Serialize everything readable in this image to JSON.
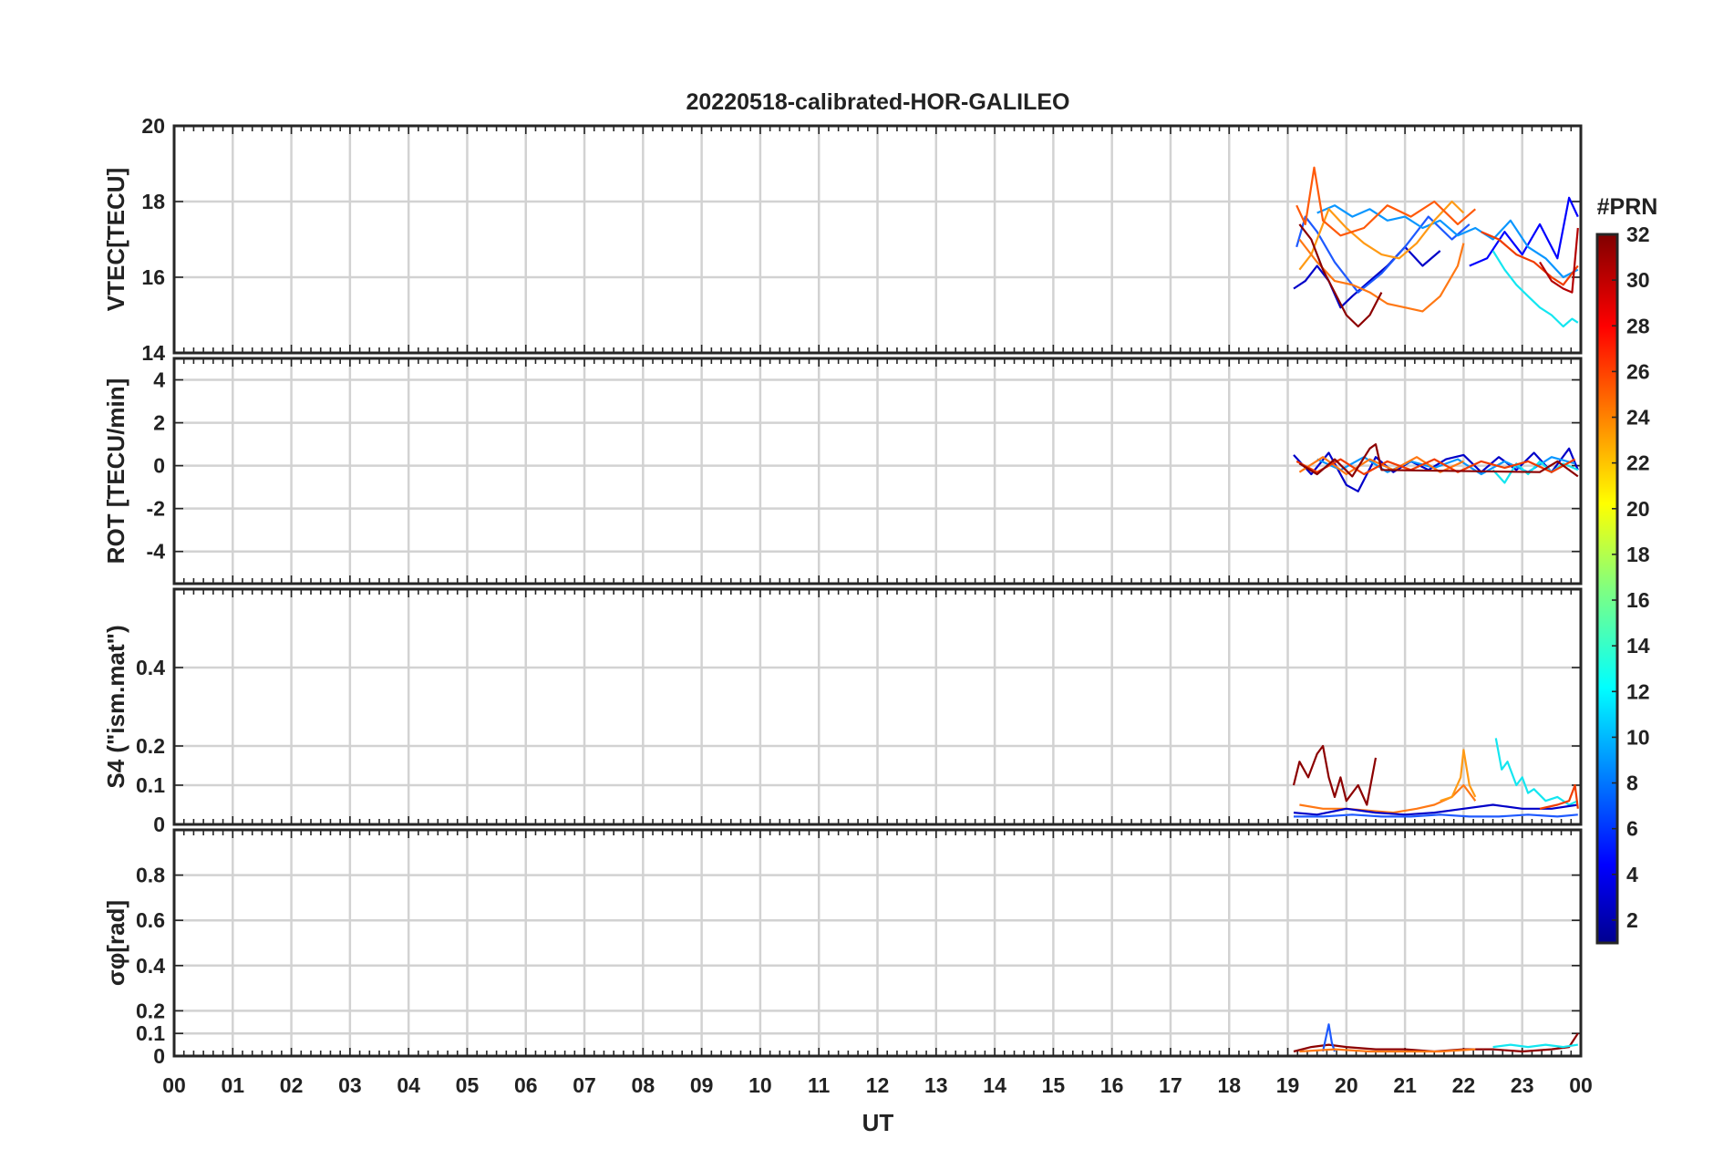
{
  "chart_data": {
    "type": "line",
    "title": "20220518-calibrated-HOR-GALILEO",
    "xlabel": "UT",
    "x_tick_labels": [
      "00",
      "01",
      "02",
      "03",
      "04",
      "05",
      "06",
      "07",
      "08",
      "09",
      "10",
      "11",
      "12",
      "13",
      "14",
      "15",
      "16",
      "17",
      "18",
      "19",
      "20",
      "21",
      "22",
      "23",
      "00"
    ],
    "xlim_hours": [
      0,
      24
    ],
    "grid": true,
    "colorbar": {
      "label": "#PRN",
      "range": [
        1,
        32
      ],
      "tick_labels": [
        "2",
        "4",
        "6",
        "8",
        "10",
        "12",
        "14",
        "16",
        "18",
        "20",
        "22",
        "24",
        "26",
        "28",
        "30",
        "32"
      ],
      "colormap": "jet"
    },
    "panels": [
      {
        "name": "vtec",
        "ylabel": "VTEC[TECU]",
        "ylim": [
          14,
          20
        ],
        "y_ticks": [
          14,
          16,
          18,
          20
        ],
        "y_tick_labels": [
          "14",
          "16",
          "18",
          "20"
        ],
        "series": [
          {
            "prn": 2,
            "color": "#0000c8",
            "x": [
              19.1,
              19.3,
              19.5,
              19.7,
              19.9,
              20.1,
              20.4,
              20.7,
              21.0,
              21.3,
              21.6
            ],
            "y": [
              15.7,
              15.9,
              16.3,
              15.9,
              15.2,
              15.5,
              15.9,
              16.3,
              16.8,
              16.3,
              16.7
            ]
          },
          {
            "prn": 3,
            "color": "#0000ff",
            "x": [
              22.1,
              22.4,
              22.7,
              23.0,
              23.3,
              23.6,
              23.8,
              23.95
            ],
            "y": [
              16.3,
              16.5,
              17.2,
              16.6,
              17.4,
              16.5,
              18.1,
              17.6
            ]
          },
          {
            "prn": 5,
            "color": "#1e5aff",
            "x": [
              19.15,
              19.3,
              19.5,
              19.8,
              20.2,
              20.6,
              21.0,
              21.4,
              21.8,
              22.1
            ],
            "y": [
              16.8,
              17.6,
              17.2,
              16.4,
              15.6,
              16.1,
              16.8,
              17.6,
              17.0,
              17.4
            ]
          },
          {
            "prn": 9,
            "color": "#0a96ff",
            "x": [
              19.5,
              19.8,
              20.1,
              20.4,
              20.7,
              21.0,
              21.3,
              21.6,
              21.9,
              22.2,
              22.5,
              22.8,
              23.1,
              23.4,
              23.7,
              23.95
            ],
            "y": [
              17.7,
              17.9,
              17.6,
              17.8,
              17.5,
              17.6,
              17.3,
              17.5,
              17.1,
              17.3,
              17.0,
              17.5,
              16.8,
              16.5,
              16.0,
              16.2
            ]
          },
          {
            "prn": 12,
            "color": "#14e6f0",
            "x": [
              22.5,
              22.7,
              22.9,
              23.1,
              23.3,
              23.5,
              23.7,
              23.85,
              23.95
            ],
            "y": [
              16.7,
              16.2,
              15.8,
              15.5,
              15.2,
              15.0,
              14.7,
              14.9,
              14.8
            ]
          },
          {
            "prn": 22,
            "color": "#ff9a14",
            "x": [
              19.2,
              19.4,
              19.7,
              20.0,
              20.3,
              20.6,
              20.9,
              21.2,
              21.5,
              21.8,
              22.0
            ],
            "y": [
              16.2,
              16.6,
              17.8,
              17.3,
              16.9,
              16.6,
              16.5,
              16.9,
              17.5,
              18.0,
              17.7
            ]
          },
          {
            "prn": 24,
            "color": "#ff7814",
            "x": [
              19.2,
              19.5,
              19.8,
              20.1,
              20.4,
              20.7,
              21.0,
              21.3,
              21.6,
              21.9,
              22.0
            ],
            "y": [
              17.0,
              16.4,
              15.9,
              15.8,
              15.6,
              15.3,
              15.2,
              15.1,
              15.5,
              16.3,
              16.9
            ]
          },
          {
            "prn": 26,
            "color": "#ff5a0a",
            "x": [
              19.15,
              19.3,
              19.45,
              19.6,
              19.9,
              20.3,
              20.7,
              21.1,
              21.5,
              21.9,
              22.2
            ],
            "y": [
              17.9,
              17.4,
              18.9,
              17.5,
              17.1,
              17.3,
              17.9,
              17.6,
              18.0,
              17.4,
              17.8
            ]
          },
          {
            "prn": 27,
            "color": "#f03c00",
            "x": [
              22.3,
              22.6,
              22.9,
              23.2,
              23.5,
              23.7,
              23.95
            ],
            "y": [
              17.2,
              17.0,
              16.6,
              16.4,
              16.0,
              15.8,
              16.3
            ]
          },
          {
            "prn": 31,
            "color": "#8c0000",
            "x": [
              19.2,
              19.4,
              19.6,
              19.8,
              20.0,
              20.2,
              20.4,
              20.6
            ],
            "y": [
              17.4,
              17.0,
              16.2,
              15.6,
              15.0,
              14.7,
              15.0,
              15.6
            ]
          },
          {
            "prn": 30,
            "color": "#b40000",
            "x": [
              23.3,
              23.5,
              23.7,
              23.85,
              23.95
            ],
            "y": [
              16.4,
              15.9,
              15.7,
              15.6,
              17.3
            ]
          }
        ]
      },
      {
        "name": "rot",
        "ylabel": "ROT [TECU/min]",
        "ylim": [
          -5.5,
          5
        ],
        "y_ticks": [
          -4,
          -2,
          0,
          2,
          4
        ],
        "y_tick_labels": [
          "-4",
          "-2",
          "0",
          "2",
          "4"
        ],
        "series": [
          {
            "prn": 2,
            "color": "#0000c8",
            "x": [
              19.1,
              19.4,
              19.7,
              20.0,
              20.2,
              20.5,
              20.8,
              21.1,
              21.4,
              21.7,
              22.0,
              22.3,
              22.6,
              22.9,
              23.2,
              23.5,
              23.8,
              23.95
            ],
            "y": [
              0.5,
              -0.4,
              0.6,
              -0.9,
              -1.2,
              0.4,
              -0.3,
              0.2,
              -0.2,
              0.3,
              0.5,
              -0.3,
              0.4,
              -0.2,
              0.6,
              -0.3,
              0.8,
              -0.2
            ]
          },
          {
            "prn": 9,
            "color": "#0a96ff",
            "x": [
              19.5,
              19.9,
              20.3,
              20.7,
              21.1,
              21.5,
              21.9,
              22.3,
              22.7,
              23.1,
              23.5,
              23.9
            ],
            "y": [
              0.3,
              -0.2,
              0.4,
              -0.3,
              0.2,
              -0.1,
              0.3,
              -0.4,
              0.2,
              -0.3,
              0.4,
              0.1
            ]
          },
          {
            "prn": 12,
            "color": "#14e6f0",
            "x": [
              22.5,
              22.7,
              22.9,
              23.1,
              23.3,
              23.5,
              23.7,
              23.95
            ],
            "y": [
              -0.2,
              -0.8,
              0.1,
              -0.4,
              0.2,
              -0.3,
              0.1,
              -0.2
            ]
          },
          {
            "prn": 24,
            "color": "#ff7814",
            "x": [
              19.2,
              19.6,
              20.0,
              20.4,
              20.8,
              21.2,
              21.6,
              22.0
            ],
            "y": [
              -0.3,
              0.4,
              -0.4,
              0.3,
              -0.2,
              0.4,
              -0.3,
              0.2
            ]
          },
          {
            "prn": 27,
            "color": "#f03c00",
            "x": [
              19.15,
              19.5,
              19.9,
              20.3,
              20.7,
              21.1,
              21.5,
              21.9,
              22.3,
              22.7,
              23.1,
              23.5,
              23.9
            ],
            "y": [
              0.2,
              -0.3,
              0.3,
              -0.4,
              0.2,
              -0.2,
              0.3,
              -0.3,
              0.2,
              -0.1,
              0.2,
              -0.3,
              0.3
            ]
          },
          {
            "prn": 31,
            "color": "#8c0000",
            "x": [
              19.2,
              19.5,
              19.8,
              20.1,
              20.4,
              20.5,
              20.6,
              23.3,
              23.6,
              23.95
            ],
            "y": [
              0.1,
              -0.4,
              0.3,
              -0.5,
              0.8,
              1.0,
              -0.2,
              -0.3,
              0.2,
              -0.5
            ]
          }
        ]
      },
      {
        "name": "s4",
        "ylabel": "S4 (\"ism.mat\")",
        "ylim": [
          0,
          0.6
        ],
        "y_ticks": [
          0,
          0.1,
          0.2,
          0.4
        ],
        "y_tick_labels": [
          "0",
          "0.1",
          "0.2",
          "0.4"
        ],
        "series": [
          {
            "prn": 31,
            "color": "#8c0000",
            "x": [
              19.1,
              19.2,
              19.35,
              19.5,
              19.6,
              19.7,
              19.8,
              19.9,
              20.0,
              20.2,
              20.35,
              20.5
            ],
            "y": [
              0.1,
              0.16,
              0.12,
              0.18,
              0.2,
              0.12,
              0.07,
              0.12,
              0.06,
              0.1,
              0.05,
              0.17
            ]
          },
          {
            "prn": 24,
            "color": "#ff7814",
            "x": [
              19.2,
              19.6,
              20.0,
              20.4,
              20.8,
              21.2,
              21.5,
              21.8,
              22.0,
              22.2
            ],
            "y": [
              0.05,
              0.04,
              0.04,
              0.035,
              0.03,
              0.04,
              0.05,
              0.07,
              0.1,
              0.06
            ]
          },
          {
            "prn": 22,
            "color": "#ff9a14",
            "x": [
              21.6,
              21.8,
              21.95,
              22.0,
              22.1,
              22.2
            ],
            "y": [
              0.06,
              0.07,
              0.12,
              0.19,
              0.1,
              0.07
            ]
          },
          {
            "prn": 12,
            "color": "#14e6f0",
            "x": [
              22.55,
              22.65,
              22.75,
              22.9,
              23.0,
              23.1,
              23.2,
              23.4,
              23.6,
              23.8,
              23.95
            ],
            "y": [
              0.22,
              0.14,
              0.16,
              0.1,
              0.12,
              0.08,
              0.09,
              0.06,
              0.07,
              0.05,
              0.06
            ]
          },
          {
            "prn": 2,
            "color": "#0000c8",
            "x": [
              19.1,
              19.5,
              20.0,
              20.5,
              21.0,
              21.5,
              22.0,
              22.5,
              23.0,
              23.5,
              23.95
            ],
            "y": [
              0.03,
              0.025,
              0.04,
              0.03,
              0.025,
              0.03,
              0.04,
              0.05,
              0.04,
              0.04,
              0.05
            ]
          },
          {
            "prn": 5,
            "color": "#1e5aff",
            "x": [
              19.1,
              19.6,
              20.1,
              20.6,
              21.1,
              21.6,
              22.1,
              22.6,
              23.1,
              23.6,
              23.95
            ],
            "y": [
              0.02,
              0.02,
              0.025,
              0.02,
              0.02,
              0.025,
              0.02,
              0.02,
              0.025,
              0.02,
              0.025
            ]
          },
          {
            "prn": 27,
            "color": "#f03c00",
            "x": [
              23.3,
              23.6,
              23.8,
              23.9,
              23.95
            ],
            "y": [
              0.04,
              0.05,
              0.06,
              0.1,
              0.04
            ]
          }
        ]
      },
      {
        "name": "sigma_phi",
        "ylabel": "σφ[rad]",
        "ylim": [
          0,
          1
        ],
        "y_ticks": [
          0,
          0.1,
          0.2,
          0.4,
          0.6,
          0.8
        ],
        "y_tick_labels": [
          "0",
          "0.1",
          "0.2",
          "0.4",
          "0.6",
          "0.8"
        ],
        "series": [
          {
            "prn": 31,
            "color": "#8c0000",
            "x": [
              19.1,
              19.4,
              19.7,
              20.0,
              20.5,
              21.0,
              21.5,
              22.0,
              22.5,
              23.0,
              23.5,
              23.8,
              23.95
            ],
            "y": [
              0.02,
              0.04,
              0.05,
              0.04,
              0.03,
              0.03,
              0.02,
              0.03,
              0.03,
              0.02,
              0.03,
              0.04,
              0.1
            ]
          },
          {
            "prn": 5,
            "color": "#1e5aff",
            "x": [
              19.6,
              19.65,
              19.7,
              19.75,
              19.8
            ],
            "y": [
              0.02,
              0.08,
              0.14,
              0.06,
              0.02
            ]
          },
          {
            "prn": 12,
            "color": "#14e6f0",
            "x": [
              22.5,
              22.8,
              23.1,
              23.4,
              23.7,
              23.95
            ],
            "y": [
              0.04,
              0.05,
              0.04,
              0.05,
              0.04,
              0.05
            ]
          },
          {
            "prn": 24,
            "color": "#ff7814",
            "x": [
              19.2,
              19.8,
              20.4,
              21.0,
              21.6,
              22.2
            ],
            "y": [
              0.02,
              0.03,
              0.02,
              0.02,
              0.02,
              0.03
            ]
          }
        ]
      }
    ]
  }
}
